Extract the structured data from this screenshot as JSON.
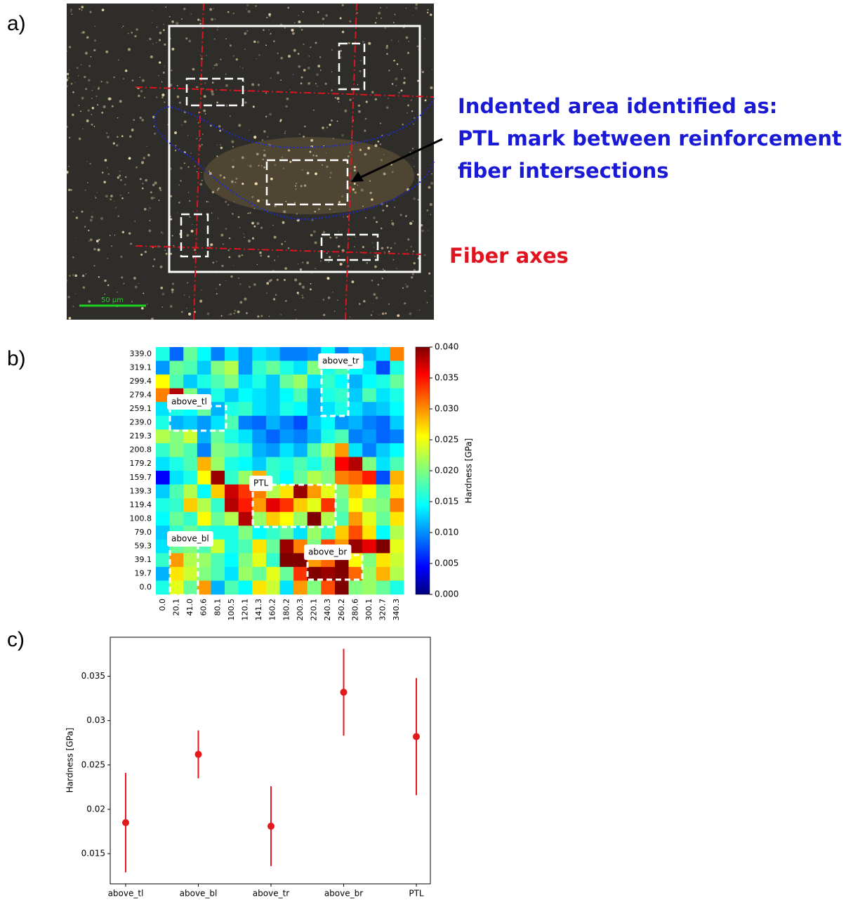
{
  "panel_labels": [
    "a)",
    "b)",
    "c)"
  ],
  "micrograph": {
    "annotation": [
      "Indented area identified as:",
      "PTL mark between reinforcement",
      "fiber intersections"
    ],
    "axes_label": "Fiber axes",
    "scale_label": "50 µm"
  },
  "chart_data": [
    {
      "type": "heatmap",
      "x": [
        "0.0",
        "20.1",
        "41.0",
        "60.6",
        "80.1",
        "100.5",
        "120.1",
        "141.3",
        "160.2",
        "180.2",
        "200.3",
        "220.1",
        "240.3",
        "260.2",
        "280.6",
        "300.1",
        "320.7",
        "340.3"
      ],
      "y": [
        "339.0",
        "319.1",
        "299.4",
        "279.4",
        "259.1",
        "239.0",
        "219.3",
        "200.8",
        "179.2",
        "159.7",
        "139.3",
        "119.4",
        "100.8",
        "79.0",
        "59.3",
        "39.1",
        "19.7",
        "0.0"
      ],
      "z": [
        [
          0.016,
          0.009,
          0.019,
          0.015,
          0.01,
          0.014,
          0.011,
          0.014,
          0.013,
          0.01,
          0.01,
          0.011,
          0.015,
          0.01,
          0.013,
          0.012,
          0.014,
          0.03
        ],
        [
          0.011,
          0.019,
          0.018,
          0.013,
          0.02,
          0.022,
          0.011,
          0.017,
          0.019,
          0.016,
          0.014,
          0.02,
          0.016,
          0.018,
          0.015,
          0.014,
          0.008,
          0.016
        ],
        [
          0.025,
          0.018,
          0.013,
          0.016,
          0.018,
          0.02,
          0.014,
          0.016,
          0.013,
          0.019,
          0.021,
          0.014,
          0.017,
          0.015,
          0.012,
          0.015,
          0.016,
          0.019
        ],
        [
          0.03,
          0.038,
          0.02,
          0.012,
          0.016,
          0.013,
          0.015,
          0.014,
          0.013,
          0.015,
          0.018,
          0.012,
          0.016,
          0.017,
          0.013,
          0.018,
          0.014,
          0.016
        ],
        [
          0.014,
          0.016,
          0.015,
          0.019,
          0.012,
          0.016,
          0.017,
          0.014,
          0.013,
          0.016,
          0.015,
          0.012,
          0.014,
          0.016,
          0.014,
          0.012,
          0.013,
          0.015
        ],
        [
          0.016,
          0.012,
          0.013,
          0.011,
          0.014,
          0.018,
          0.01,
          0.009,
          0.012,
          0.01,
          0.008,
          0.013,
          0.015,
          0.011,
          0.012,
          0.01,
          0.009,
          0.013
        ],
        [
          0.022,
          0.02,
          0.023,
          0.012,
          0.019,
          0.016,
          0.014,
          0.011,
          0.009,
          0.011,
          0.01,
          0.012,
          0.016,
          0.018,
          0.01,
          0.011,
          0.009,
          0.01
        ],
        [
          0.017,
          0.02,
          0.018,
          0.01,
          0.02,
          0.019,
          0.017,
          0.012,
          0.011,
          0.014,
          0.012,
          0.018,
          0.022,
          0.029,
          0.014,
          0.01,
          0.013,
          0.015
        ],
        [
          0.014,
          0.016,
          0.018,
          0.028,
          0.021,
          0.016,
          0.015,
          0.013,
          0.017,
          0.016,
          0.018,
          0.016,
          0.019,
          0.035,
          0.038,
          0.02,
          0.014,
          0.018
        ],
        [
          0.005,
          0.014,
          0.016,
          0.025,
          0.039,
          0.017,
          0.021,
          0.028,
          0.017,
          0.015,
          0.019,
          0.022,
          0.02,
          0.03,
          0.031,
          0.034,
          0.008,
          0.028
        ],
        [
          0.013,
          0.018,
          0.022,
          0.015,
          0.027,
          0.037,
          0.033,
          0.03,
          0.022,
          0.026,
          0.039,
          0.029,
          0.024,
          0.02,
          0.027,
          0.025,
          0.019,
          0.026
        ],
        [
          0.016,
          0.017,
          0.027,
          0.022,
          0.017,
          0.038,
          0.034,
          0.029,
          0.036,
          0.033,
          0.027,
          0.024,
          0.033,
          0.019,
          0.025,
          0.021,
          0.02,
          0.03
        ],
        [
          0.015,
          0.019,
          0.017,
          0.025,
          0.019,
          0.022,
          0.038,
          0.021,
          0.027,
          0.025,
          0.021,
          0.04,
          0.022,
          0.018,
          0.029,
          0.024,
          0.019,
          0.026
        ],
        [
          0.013,
          0.017,
          0.019,
          0.017,
          0.016,
          0.016,
          0.02,
          0.015,
          0.017,
          0.019,
          0.014,
          0.021,
          0.017,
          0.027,
          0.032,
          0.026,
          0.015,
          0.022
        ],
        [
          0.014,
          0.019,
          0.02,
          0.018,
          0.023,
          0.016,
          0.018,
          0.026,
          0.019,
          0.039,
          0.03,
          0.02,
          0.032,
          0.029,
          0.039,
          0.036,
          0.04,
          0.024
        ],
        [
          0.017,
          0.029,
          0.022,
          0.021,
          0.018,
          0.015,
          0.02,
          0.024,
          0.017,
          0.04,
          0.04,
          0.029,
          0.031,
          0.04,
          0.025,
          0.02,
          0.026,
          0.023
        ],
        [
          0.012,
          0.026,
          0.023,
          0.02,
          0.018,
          0.014,
          0.021,
          0.019,
          0.024,
          0.019,
          0.033,
          0.04,
          0.039,
          0.04,
          0.031,
          0.021,
          0.028,
          0.022
        ],
        [
          0.016,
          0.024,
          0.019,
          0.029,
          0.012,
          0.018,
          0.015,
          0.026,
          0.023,
          0.014,
          0.029,
          0.02,
          0.032,
          0.04,
          0.02,
          0.021,
          0.019,
          0.016
        ]
      ],
      "zlim": [
        0,
        0.04
      ],
      "colorbar_ticks": [
        {
          "value": 0,
          "label": "0.000"
        },
        0.005,
        {
          "value": 0.01,
          "label": "0.010"
        },
        0.015,
        {
          "value": 0.02,
          "label": "0.020"
        },
        0.025,
        {
          "value": 0.03,
          "label": "0.030"
        },
        0.035,
        {
          "value": 0.04,
          "label": "0.040"
        }
      ],
      "colorbar_label": "Hardness [GPa]",
      "colormap": "jet",
      "annotations": [
        "above_tl",
        "above_tr",
        "PTL",
        "above_bl",
        "above_br"
      ]
    },
    {
      "type": "errorbar",
      "categories": [
        "above_tl",
        "above_bl",
        "above_tr",
        "above_br",
        "PTL"
      ],
      "values": [
        0.0185,
        0.0262,
        0.0181,
        0.0332,
        0.0282
      ],
      "errors": [
        0.0056,
        0.0027,
        0.0045,
        0.0049,
        0.0066
      ],
      "color": "#e31a1c",
      "ylabel": "Hardness [GPa]",
      "ylim": [
        0.0116,
        0.0394
      ],
      "yticks": [
        0.015,
        0.02,
        0.025,
        0.03,
        0.035
      ]
    }
  ]
}
